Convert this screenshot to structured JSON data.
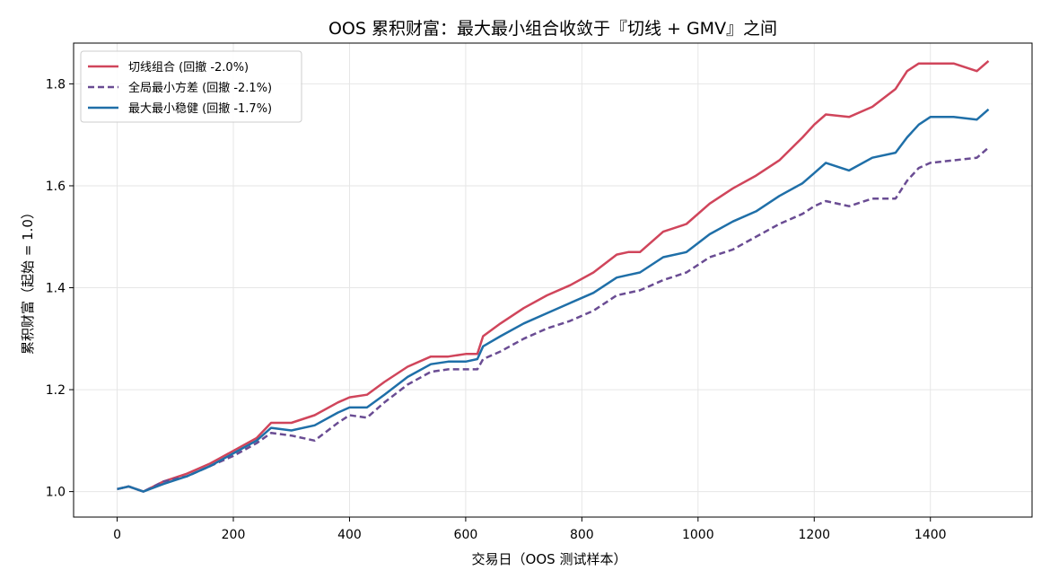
{
  "chart_data": {
    "type": "line",
    "title": "OOS 累积财富：最大最小组合收敛于『切线 + GMV』之间",
    "xlabel": "交易日（OOS 测试样本）",
    "ylabel": "累积财富（起始 = 1.0）",
    "xlim": [
      -75,
      1575
    ],
    "ylim": [
      0.95,
      1.88
    ],
    "xticks": [
      0,
      200,
      400,
      600,
      800,
      1000,
      1200,
      1400
    ],
    "xtick_labels": [
      "0",
      "200",
      "400",
      "600",
      "800",
      "1000",
      "1200",
      "1400"
    ],
    "yticks": [
      1.0,
      1.2,
      1.4,
      1.6,
      1.8
    ],
    "ytick_labels": [
      "1.0",
      "1.2",
      "1.4",
      "1.6",
      "1.8"
    ],
    "grid": true,
    "legend_position": "top-left",
    "series": [
      {
        "name": "切线组合 (回撤 -2.0%)",
        "color": "#d0455b",
        "style": "solid",
        "x": [
          0,
          20,
          45,
          80,
          120,
          160,
          200,
          240,
          265,
          300,
          340,
          380,
          400,
          430,
          460,
          500,
          540,
          570,
          600,
          620,
          630,
          660,
          700,
          740,
          780,
          820,
          860,
          880,
          900,
          940,
          980,
          1020,
          1060,
          1100,
          1140,
          1180,
          1200,
          1220,
          1260,
          1300,
          1340,
          1360,
          1380,
          1400,
          1440,
          1480,
          1500
        ],
        "y": [
          1.005,
          1.01,
          1.0,
          1.02,
          1.035,
          1.055,
          1.08,
          1.105,
          1.135,
          1.135,
          1.15,
          1.175,
          1.185,
          1.19,
          1.215,
          1.245,
          1.265,
          1.265,
          1.27,
          1.27,
          1.305,
          1.33,
          1.36,
          1.385,
          1.405,
          1.43,
          1.465,
          1.47,
          1.47,
          1.51,
          1.525,
          1.565,
          1.595,
          1.62,
          1.65,
          1.695,
          1.72,
          1.74,
          1.735,
          1.755,
          1.79,
          1.825,
          1.84,
          1.84,
          1.84,
          1.825,
          1.845
        ]
      },
      {
        "name": "全局最小方差 (回撤 -2.1%)",
        "color": "#6a4c93",
        "style": "dashed",
        "x": [
          0,
          20,
          45,
          80,
          120,
          160,
          200,
          240,
          265,
          300,
          340,
          380,
          400,
          430,
          460,
          500,
          540,
          570,
          600,
          620,
          630,
          660,
          700,
          740,
          780,
          820,
          860,
          880,
          900,
          940,
          980,
          1020,
          1060,
          1100,
          1140,
          1180,
          1200,
          1220,
          1260,
          1300,
          1340,
          1360,
          1380,
          1400,
          1440,
          1480,
          1500
        ],
        "y": [
          1.005,
          1.01,
          1.0,
          1.02,
          1.03,
          1.05,
          1.07,
          1.095,
          1.115,
          1.11,
          1.1,
          1.135,
          1.15,
          1.145,
          1.175,
          1.21,
          1.235,
          1.24,
          1.24,
          1.24,
          1.26,
          1.275,
          1.3,
          1.32,
          1.335,
          1.355,
          1.385,
          1.39,
          1.395,
          1.415,
          1.43,
          1.46,
          1.475,
          1.5,
          1.525,
          1.545,
          1.56,
          1.57,
          1.56,
          1.575,
          1.575,
          1.61,
          1.635,
          1.645,
          1.65,
          1.655,
          1.675
        ]
      },
      {
        "name": "最大最小稳健 (回撤 -1.7%)",
        "color": "#1f6fa8",
        "style": "solid",
        "x": [
          0,
          20,
          45,
          80,
          120,
          160,
          200,
          240,
          265,
          300,
          340,
          380,
          400,
          430,
          460,
          500,
          540,
          570,
          600,
          620,
          630,
          660,
          700,
          740,
          780,
          820,
          860,
          880,
          900,
          940,
          980,
          1020,
          1060,
          1100,
          1140,
          1180,
          1200,
          1220,
          1260,
          1300,
          1340,
          1360,
          1380,
          1400,
          1440,
          1480,
          1500
        ],
        "y": [
          1.005,
          1.01,
          1.0,
          1.015,
          1.03,
          1.05,
          1.075,
          1.1,
          1.125,
          1.12,
          1.13,
          1.155,
          1.165,
          1.165,
          1.19,
          1.225,
          1.25,
          1.255,
          1.255,
          1.26,
          1.285,
          1.305,
          1.33,
          1.35,
          1.37,
          1.39,
          1.42,
          1.425,
          1.43,
          1.46,
          1.47,
          1.505,
          1.53,
          1.55,
          1.58,
          1.605,
          1.625,
          1.645,
          1.63,
          1.655,
          1.665,
          1.695,
          1.72,
          1.735,
          1.735,
          1.73,
          1.75
        ]
      }
    ]
  }
}
